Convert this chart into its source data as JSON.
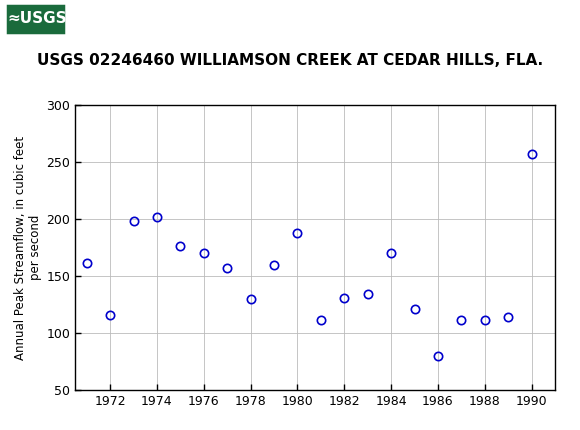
{
  "title": "USGS 02246460 WILLIAMSON CREEK AT CEDAR HILLS, FLA.",
  "ylabel": "Annual Peak Streamflow, in cubic feet\nper second",
  "xlabel": "",
  "years": [
    1971,
    1972,
    1973,
    1974,
    1975,
    1976,
    1977,
    1978,
    1979,
    1980,
    1981,
    1982,
    1983,
    1984,
    1985,
    1986,
    1987,
    1988,
    1989,
    1990
  ],
  "values": [
    161,
    116,
    198,
    202,
    176,
    170,
    157,
    130,
    160,
    188,
    111,
    131,
    134,
    170,
    121,
    80,
    111,
    111,
    114,
    257
  ],
  "xlim": [
    1970.5,
    1991.0
  ],
  "ylim": [
    50,
    300
  ],
  "yticks": [
    50,
    100,
    150,
    200,
    250,
    300
  ],
  "xticks": [
    1972,
    1974,
    1976,
    1978,
    1980,
    1982,
    1984,
    1986,
    1988,
    1990
  ],
  "marker_color": "#0000CC",
  "marker_size": 6,
  "marker_style": "o",
  "marker_facecolor": "none",
  "grid_color": "#bbbbbb",
  "background_color": "#ffffff",
  "plot_bg_color": "#ffffff",
  "header_bg_color": "#1a6b3c",
  "header_text_color": "#ffffff",
  "title_fontsize": 11,
  "ylabel_fontsize": 8.5,
  "tick_fontsize": 9
}
